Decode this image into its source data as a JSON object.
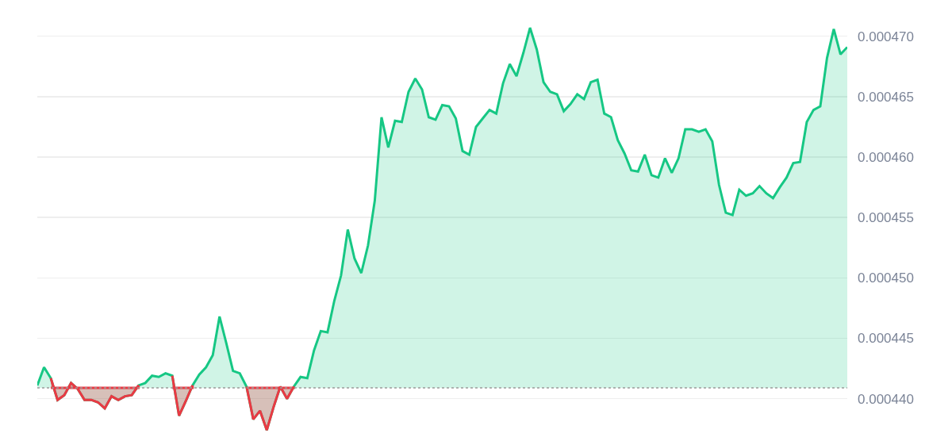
{
  "chart_data": {
    "type": "area",
    "categories": [
      null,
      null,
      null,
      null,
      null,
      null,
      null,
      null,
      null,
      null,
      null,
      null,
      null,
      null,
      null,
      null,
      null,
      null,
      null,
      null,
      null,
      null,
      null,
      null,
      null,
      null,
      null,
      null,
      null,
      null,
      null,
      null,
      null,
      null,
      null,
      null,
      null,
      null,
      null,
      null,
      null,
      null,
      null,
      null,
      null,
      null,
      null,
      null,
      null,
      null,
      null,
      null,
      null,
      null,
      null,
      null,
      null,
      null,
      null,
      null,
      null,
      null,
      null,
      null,
      null,
      null,
      null,
      null,
      null,
      null,
      null,
      null,
      null,
      null,
      null,
      null,
      null,
      null,
      null,
      null,
      null,
      null,
      null,
      null,
      null,
      null,
      null,
      null,
      null,
      null,
      null,
      null,
      null,
      null,
      null,
      null,
      null,
      null,
      null,
      null,
      null,
      null,
      null,
      null,
      null,
      null,
      null,
      null,
      null,
      null,
      null,
      null,
      null,
      null,
      null,
      null,
      null,
      null,
      null,
      null,
      null
    ],
    "series": [
      {
        "color": "#16c784",
        "values": [
          0.0004411,
          0.0004426,
          0.0004417,
          0.0004399,
          0.0004403,
          0.0004413,
          0.0004408,
          0.0004399,
          0.0004399,
          0.0004397,
          0.0004392,
          0.0004402,
          0.0004399,
          0.0004402,
          0.0004403,
          0.0004411,
          0.0004413,
          0.0004419,
          0.0004418,
          0.0004421,
          0.0004419,
          0.0004386,
          0.0004398,
          0.0004411,
          0.000442,
          0.0004426,
          0.0004436,
          0.0004468,
          0.0004446,
          0.0004423,
          0.0004421,
          0.000441,
          0.0004383,
          0.000439,
          0.0004374,
          0.0004393,
          0.000441,
          0.00044,
          0.000441,
          0.0004418,
          0.0004417,
          0.000444,
          0.0004456,
          0.0004455,
          0.0004481,
          0.0004502,
          0.000454,
          0.0004516,
          0.0004504,
          0.0004527,
          0.0004564,
          0.0004633,
          0.0004608,
          0.000463,
          0.0004629,
          0.0004654,
          0.0004665,
          0.0004656,
          0.0004633,
          0.0004631,
          0.0004643,
          0.0004642,
          0.0004632,
          0.0004605,
          0.0004602,
          0.0004625,
          0.0004632,
          0.0004639,
          0.0004636,
          0.0004661,
          0.0004677,
          0.0004667,
          0.0004686,
          0.0004707,
          0.0004689,
          0.0004662,
          0.0004654,
          0.0004652,
          0.0004638,
          0.0004644,
          0.0004652,
          0.0004648,
          0.0004662,
          0.0004664,
          0.0004636,
          0.0004633,
          0.0004614,
          0.0004603,
          0.0004589,
          0.0004588,
          0.0004602,
          0.0004585,
          0.0004583,
          0.0004599,
          0.0004587,
          0.0004599,
          0.0004623,
          0.0004623,
          0.0004621,
          0.0004623,
          0.0004613,
          0.0004577,
          0.0004554,
          0.0004552,
          0.0004573,
          0.0004568,
          0.000457,
          0.0004576,
          0.000457,
          0.0004566,
          0.0004575,
          0.0004583,
          0.0004595,
          0.0004596,
          0.0004629,
          0.0004639,
          0.0004642,
          0.0004682,
          0.0004706,
          0.0004685,
          0.0004691
        ]
      },
      {
        "color": "#ea3943",
        "values": [
          null,
          null,
          0.0004417,
          0.0004399,
          0.0004403,
          0.0004413,
          0.0004408,
          0.0004399,
          0.0004399,
          0.0004397,
          0.0004392,
          0.0004402,
          0.0004399,
          0.0004402,
          0.0004403,
          0.0004411,
          null,
          null,
          null,
          null,
          0.0004419,
          0.0004386,
          0.0004398,
          0.0004411,
          null,
          null,
          null,
          null,
          null,
          null,
          null,
          0.000441,
          0.0004383,
          0.000439,
          0.0004374,
          0.0004393,
          0.000441,
          0.00044,
          0.000441,
          null,
          null,
          null,
          null,
          null,
          null,
          null,
          null,
          null,
          null,
          null,
          null,
          null,
          null,
          null,
          null,
          null,
          null,
          null,
          null,
          null,
          null,
          null,
          null,
          null,
          null,
          null,
          null,
          null,
          null,
          null,
          null,
          null,
          null,
          null,
          null,
          null,
          null,
          null,
          null,
          null,
          null,
          null,
          null,
          null,
          null,
          null,
          null,
          null,
          null,
          null,
          null,
          null,
          null,
          null,
          null,
          null,
          null,
          null,
          null,
          null,
          null,
          null,
          null,
          null,
          null,
          null,
          null,
          null,
          null,
          null,
          null,
          null,
          null,
          null,
          null,
          null,
          null,
          null,
          null,
          null,
          null
        ]
      }
    ],
    "ylim": [
      0.0004365,
      0.000473
    ],
    "yticks": [
      {
        "value": 0.00044,
        "label": "0.000440"
      },
      {
        "value": 0.000445,
        "label": "0.000445"
      },
      {
        "value": 0.00045,
        "label": "0.000450"
      },
      {
        "value": 0.000455,
        "label": "0.000455"
      },
      {
        "value": 0.00046,
        "label": "0.000460"
      },
      {
        "value": 0.000465,
        "label": "0.000465"
      },
      {
        "value": 0.00047,
        "label": "0.000470"
      }
    ],
    "grid": "y",
    "marker": "none",
    "line_style": "solid",
    "ref_lines": [
      {
        "axis": "y",
        "value": 0.0004409,
        "color": "#9a9a9a",
        "line_style": "dotted"
      }
    ]
  }
}
